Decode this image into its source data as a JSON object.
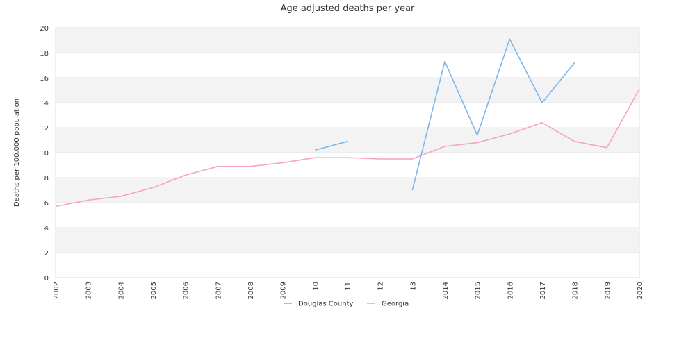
{
  "chart_data": {
    "type": "line",
    "title": "Age adjusted deaths per year",
    "xlabel": "",
    "ylabel": "Deaths per 100,000 population",
    "x": [
      "2002",
      "2003",
      "2004",
      "2005",
      "2006",
      "2007",
      "2008",
      "2009",
      "2010",
      "2011",
      "2012",
      "2013",
      "2014",
      "2015",
      "2016",
      "2017",
      "2018",
      "2019",
      "2020"
    ],
    "x_tick_labels": [
      "2002",
      "2003",
      "2004",
      "2005",
      "2006",
      "2007",
      "2008",
      "2009",
      "10",
      "11",
      "12",
      "13",
      "2014",
      "2015",
      "2016",
      "2017",
      "2018",
      "2019",
      "2020"
    ],
    "ylim": [
      0,
      20
    ],
    "y_ticks": [
      0,
      2,
      4,
      6,
      8,
      10,
      12,
      14,
      16,
      18,
      20
    ],
    "grid": true,
    "legend_position": "bottom",
    "series": [
      {
        "name": "Douglas County",
        "color": "#7cb5ec",
        "values": [
          null,
          null,
          null,
          null,
          null,
          null,
          null,
          null,
          10.2,
          10.9,
          null,
          7.0,
          17.3,
          11.4,
          19.1,
          14.0,
          17.2,
          null,
          null
        ]
      },
      {
        "name": "Georgia",
        "color": "#f7a1c4",
        "values": [
          5.7,
          6.2,
          6.5,
          7.2,
          8.2,
          8.9,
          8.9,
          9.2,
          9.6,
          9.6,
          9.5,
          9.5,
          10.5,
          10.8,
          11.5,
          12.4,
          10.9,
          10.4,
          15.1
        ]
      }
    ]
  }
}
